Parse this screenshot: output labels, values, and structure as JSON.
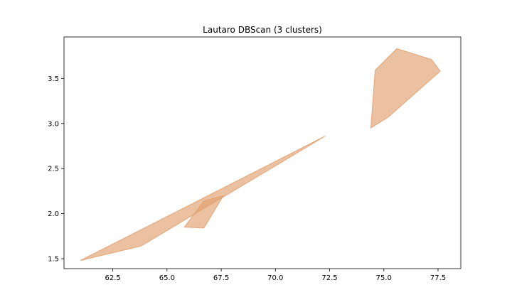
{
  "chart_data": {
    "type": "area",
    "title": "Lautaro DBScan (3 clusters)",
    "xlabel": "",
    "ylabel": "",
    "xlim": [
      60.25,
      78.55
    ],
    "ylim": [
      1.39,
      3.96
    ],
    "xticks": [
      62.5,
      65.0,
      67.5,
      70.0,
      72.5,
      75.0,
      77.5
    ],
    "xtick_labels": [
      "62.5",
      "65.0",
      "67.5",
      "70.0",
      "72.5",
      "75.0",
      "77.5"
    ],
    "yticks": [
      1.5,
      2.0,
      2.5,
      3.0,
      3.5
    ],
    "ytick_labels": [
      "1.5",
      "2.0",
      "2.5",
      "3.0",
      "3.5"
    ],
    "grid": false,
    "fill_color": "#e1a06e",
    "fill_opacity": 0.65,
    "series": [
      {
        "points": [
          [
            61.0,
            1.48
          ],
          [
            63.8,
            1.64
          ],
          [
            72.3,
            2.86
          ],
          [
            61.0,
            1.48
          ]
        ]
      },
      {
        "points": [
          [
            65.8,
            1.85
          ],
          [
            66.7,
            1.84
          ],
          [
            67.6,
            2.2
          ],
          [
            66.7,
            2.14
          ],
          [
            65.8,
            1.85
          ]
        ]
      },
      {
        "points": [
          [
            74.4,
            2.95
          ],
          [
            75.2,
            3.07
          ],
          [
            77.6,
            3.58
          ],
          [
            77.2,
            3.71
          ],
          [
            75.6,
            3.83
          ],
          [
            74.6,
            3.59
          ],
          [
            74.4,
            2.95
          ]
        ]
      }
    ]
  }
}
